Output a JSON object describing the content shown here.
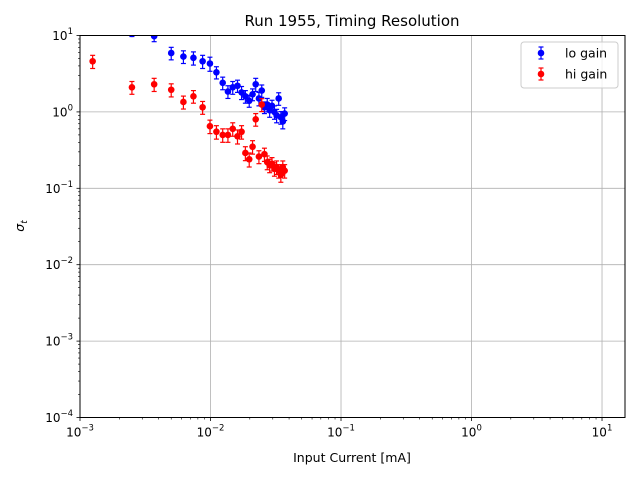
{
  "chart_data": {
    "type": "scatter",
    "title": "Run 1955, Timing Resolution",
    "xlabel": "Input Current [mA]",
    "ylabel": "σ",
    "ylabel_subscript": "t",
    "xscale": "log",
    "yscale": "log",
    "xlim": [
      0.001,
      15
    ],
    "ylim": [
      0.0001,
      10
    ],
    "grid": true,
    "legend_position": "top-right",
    "xticks": [
      {
        "value": 0.001,
        "base": "10",
        "exp": "−3"
      },
      {
        "value": 0.01,
        "base": "10",
        "exp": "−2"
      },
      {
        "value": 0.1,
        "base": "10",
        "exp": "−1"
      },
      {
        "value": 1,
        "base": "10",
        "exp": "0"
      },
      {
        "value": 10,
        "base": "10",
        "exp": "1"
      }
    ],
    "yticks": [
      {
        "value": 0.0001,
        "base": "10",
        "exp": "−4"
      },
      {
        "value": 0.001,
        "base": "10",
        "exp": "−3"
      },
      {
        "value": 0.01,
        "base": "10",
        "exp": "−2"
      },
      {
        "value": 0.1,
        "base": "10",
        "exp": "−1"
      },
      {
        "value": 1,
        "base": "10",
        "exp": "0"
      },
      {
        "value": 10,
        "base": "10",
        "exp": "1"
      }
    ],
    "series": [
      {
        "name": "lo gain",
        "color": "#0000ff",
        "points": [
          {
            "x": 0.0025,
            "y": 10.5,
            "err": 0.8
          },
          {
            "x": 0.0037,
            "y": 9.8,
            "err": 1.5
          },
          {
            "x": 0.005,
            "y": 5.9,
            "err": 1.1
          },
          {
            "x": 0.0062,
            "y": 5.3,
            "err": 1.0
          },
          {
            "x": 0.0074,
            "y": 5.1,
            "err": 1.0
          },
          {
            "x": 0.0087,
            "y": 4.6,
            "err": 0.9
          },
          {
            "x": 0.0099,
            "y": 4.3,
            "err": 0.9
          },
          {
            "x": 0.0111,
            "y": 3.3,
            "err": 0.6
          },
          {
            "x": 0.0124,
            "y": 2.4,
            "err": 0.45
          },
          {
            "x": 0.0136,
            "y": 1.85,
            "err": 0.35
          },
          {
            "x": 0.0148,
            "y": 2.1,
            "err": 0.4
          },
          {
            "x": 0.0161,
            "y": 2.2,
            "err": 0.4
          },
          {
            "x": 0.0173,
            "y": 1.8,
            "err": 0.35
          },
          {
            "x": 0.0185,
            "y": 1.6,
            "err": 0.3
          },
          {
            "x": 0.0198,
            "y": 1.4,
            "err": 0.25
          },
          {
            "x": 0.021,
            "y": 1.7,
            "err": 0.3
          },
          {
            "x": 0.0222,
            "y": 2.3,
            "err": 0.45
          },
          {
            "x": 0.0235,
            "y": 1.5,
            "err": 0.3
          },
          {
            "x": 0.0247,
            "y": 1.9,
            "err": 0.35
          },
          {
            "x": 0.0259,
            "y": 1.15,
            "err": 0.2
          },
          {
            "x": 0.0272,
            "y": 1.25,
            "err": 0.25
          },
          {
            "x": 0.0284,
            "y": 1.05,
            "err": 0.2
          },
          {
            "x": 0.0296,
            "y": 1.2,
            "err": 0.22
          },
          {
            "x": 0.0309,
            "y": 1.0,
            "err": 0.2
          },
          {
            "x": 0.0321,
            "y": 0.9,
            "err": 0.18
          },
          {
            "x": 0.0333,
            "y": 1.5,
            "err": 0.28
          },
          {
            "x": 0.0346,
            "y": 0.85,
            "err": 0.16
          },
          {
            "x": 0.0358,
            "y": 0.75,
            "err": 0.15
          },
          {
            "x": 0.037,
            "y": 0.95,
            "err": 0.18
          }
        ]
      },
      {
        "name": "hi gain",
        "color": "#ff0000",
        "points": [
          {
            "x": 0.00125,
            "y": 4.6,
            "err": 0.9
          },
          {
            "x": 0.0025,
            "y": 2.1,
            "err": 0.4
          },
          {
            "x": 0.0037,
            "y": 2.3,
            "err": 0.45
          },
          {
            "x": 0.005,
            "y": 1.95,
            "err": 0.38
          },
          {
            "x": 0.0062,
            "y": 1.35,
            "err": 0.26
          },
          {
            "x": 0.0074,
            "y": 1.6,
            "err": 0.3
          },
          {
            "x": 0.0087,
            "y": 1.15,
            "err": 0.22
          },
          {
            "x": 0.0099,
            "y": 0.65,
            "err": 0.13
          },
          {
            "x": 0.0111,
            "y": 0.55,
            "err": 0.11
          },
          {
            "x": 0.0124,
            "y": 0.5,
            "err": 0.1
          },
          {
            "x": 0.0136,
            "y": 0.5,
            "err": 0.1
          },
          {
            "x": 0.0148,
            "y": 0.6,
            "err": 0.12
          },
          {
            "x": 0.0161,
            "y": 0.48,
            "err": 0.1
          },
          {
            "x": 0.0173,
            "y": 0.55,
            "err": 0.11
          },
          {
            "x": 0.0185,
            "y": 0.29,
            "err": 0.06
          },
          {
            "x": 0.0198,
            "y": 0.24,
            "err": 0.05
          },
          {
            "x": 0.021,
            "y": 0.35,
            "err": 0.07
          },
          {
            "x": 0.0222,
            "y": 0.8,
            "err": 0.15
          },
          {
            "x": 0.0235,
            "y": 0.26,
            "err": 0.05
          },
          {
            "x": 0.0247,
            "y": 1.25,
            "err": 0.24
          },
          {
            "x": 0.0259,
            "y": 0.28,
            "err": 0.055
          },
          {
            "x": 0.0272,
            "y": 0.22,
            "err": 0.045
          },
          {
            "x": 0.0284,
            "y": 0.2,
            "err": 0.04
          },
          {
            "x": 0.0296,
            "y": 0.21,
            "err": 0.042
          },
          {
            "x": 0.0309,
            "y": 0.18,
            "err": 0.036
          },
          {
            "x": 0.0321,
            "y": 0.19,
            "err": 0.038
          },
          {
            "x": 0.0333,
            "y": 0.17,
            "err": 0.034
          },
          {
            "x": 0.0346,
            "y": 0.15,
            "err": 0.03
          },
          {
            "x": 0.0358,
            "y": 0.19,
            "err": 0.038
          },
          {
            "x": 0.037,
            "y": 0.17,
            "err": 0.034
          }
        ]
      }
    ]
  }
}
